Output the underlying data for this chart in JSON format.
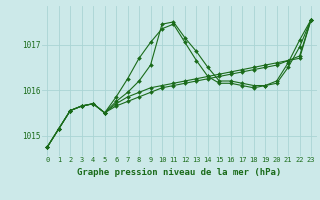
{
  "xlabel": "Graphe pression niveau de la mer (hPa)",
  "background_color": "#cce9e9",
  "grid_color": "#aad4d4",
  "line_color": "#1a6b1a",
  "marker_color": "#1a6b1a",
  "xlim": [
    -0.5,
    23.5
  ],
  "ylim": [
    1014.55,
    1017.85
  ],
  "yticks": [
    1015,
    1016,
    1017
  ],
  "xticks": [
    0,
    1,
    2,
    3,
    4,
    5,
    6,
    7,
    8,
    9,
    10,
    11,
    12,
    13,
    14,
    15,
    16,
    17,
    18,
    19,
    20,
    21,
    22,
    23
  ],
  "series": [
    [
      1014.75,
      1015.15,
      1015.55,
      1015.65,
      1015.7,
      1015.5,
      1015.65,
      1015.75,
      1015.85,
      1015.95,
      1016.05,
      1016.1,
      1016.15,
      1016.2,
      1016.25,
      1016.3,
      1016.35,
      1016.4,
      1016.45,
      1016.5,
      1016.55,
      1016.65,
      1016.75,
      1017.55
    ],
    [
      1014.75,
      1015.15,
      1015.55,
      1015.65,
      1015.7,
      1015.5,
      1015.75,
      1015.95,
      1016.2,
      1016.55,
      1017.45,
      1017.5,
      1017.15,
      1016.85,
      1016.5,
      1016.2,
      1016.2,
      1016.15,
      1016.1,
      1016.1,
      1016.2,
      1016.6,
      1017.1,
      1017.55
    ],
    [
      1014.75,
      1015.15,
      1015.55,
      1015.65,
      1015.7,
      1015.5,
      1015.85,
      1016.25,
      1016.7,
      1017.05,
      1017.35,
      1017.45,
      1017.05,
      1016.65,
      1016.3,
      1016.15,
      1016.15,
      1016.1,
      1016.05,
      1016.1,
      1016.15,
      1016.5,
      1016.95,
      1017.55
    ],
    [
      1014.75,
      1015.15,
      1015.55,
      1015.65,
      1015.7,
      1015.5,
      1015.7,
      1015.85,
      1015.95,
      1016.05,
      1016.1,
      1016.15,
      1016.2,
      1016.25,
      1016.3,
      1016.35,
      1016.4,
      1016.45,
      1016.5,
      1016.55,
      1016.6,
      1016.65,
      1016.7,
      1017.55
    ]
  ]
}
